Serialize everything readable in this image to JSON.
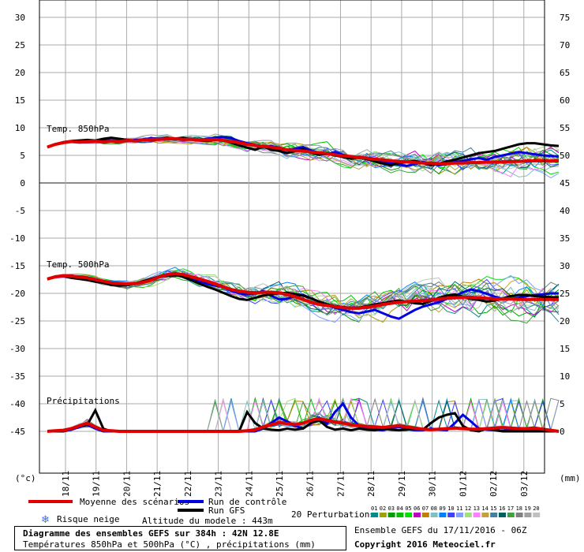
{
  "chart_data": {
    "type": "line",
    "title": "Diagramme des ensembles GEFS sur 384h : 42N 12.8E",
    "subtitle": "Températures 850hPa et 500hPa (°C) , précipitations (mm)",
    "x_dates": [
      "18/11",
      "19/11",
      "20/11",
      "21/11",
      "22/11",
      "23/11",
      "24/11",
      "25/11",
      "26/11",
      "27/11",
      "28/11",
      "29/11",
      "30/11",
      "01/12",
      "02/12",
      "03/12"
    ],
    "ylabel_left": "(°c)",
    "ylabel_right": "(mm)",
    "left_ticks": [
      30,
      25,
      20,
      15,
      10,
      5,
      0,
      -5,
      -10,
      -15,
      -20,
      -25,
      -30,
      -35,
      -40,
      -45
    ],
    "right_ticks": [
      75,
      70,
      65,
      60,
      55,
      50,
      45,
      40,
      35,
      30,
      25,
      20,
      15,
      10,
      5,
      0
    ],
    "ylim_left": [
      -50,
      33
    ],
    "panel_labels": {
      "t850": "Temp. 850hPa",
      "t500": "Temp. 500hPa",
      "precip": "Précipitations"
    },
    "x_hours": [
      0,
      6,
      12,
      18,
      24,
      30,
      36,
      42,
      48,
      54,
      60,
      66,
      72,
      78,
      84,
      90,
      96,
      102,
      108,
      114,
      120,
      126,
      132,
      138,
      144,
      150,
      156,
      162,
      168,
      174,
      180,
      186,
      192,
      198,
      204,
      210,
      216,
      222,
      228,
      234,
      240,
      246,
      252,
      258,
      264,
      270,
      276,
      282,
      288,
      294,
      300,
      306,
      312,
      318,
      324,
      330,
      336,
      342,
      348,
      354,
      360,
      366,
      372,
      378,
      384
    ],
    "series": [
      {
        "name": "Moyenne des scénarios",
        "color": "#e00000",
        "t850": [
          6.5,
          7.0,
          7.3,
          7.5,
          7.4,
          7.5,
          7.6,
          7.4,
          7.6,
          7.5,
          7.7,
          7.6,
          7.8,
          7.9,
          7.9,
          8.0,
          8.0,
          7.9,
          7.9,
          7.8,
          7.8,
          7.9,
          7.7,
          7.5,
          7.3,
          7.0,
          6.8,
          6.6,
          6.5,
          6.3,
          6.0,
          5.9,
          5.8,
          5.6,
          5.5,
          5.3,
          5.1,
          4.9,
          4.8,
          4.6,
          4.5,
          4.3,
          4.2,
          4.0,
          3.9,
          3.8,
          3.7,
          3.6,
          3.6,
          3.5,
          3.5,
          3.6,
          3.6,
          3.7,
          3.7,
          3.8,
          3.8,
          3.8,
          3.9,
          3.9,
          4.0,
          4.0,
          4.0,
          4.0,
          4.0
        ],
        "t500": [
          -17.4,
          -17.0,
          -16.8,
          -16.9,
          -17.0,
          -17.2,
          -17.5,
          -17.8,
          -18.1,
          -18.2,
          -18.3,
          -18.2,
          -18.0,
          -17.6,
          -17.0,
          -16.6,
          -16.4,
          -16.6,
          -17.0,
          -17.4,
          -17.8,
          -18.3,
          -18.8,
          -19.3,
          -19.6,
          -19.8,
          -19.9,
          -19.8,
          -19.8,
          -19.9,
          -20.2,
          -20.6,
          -21.1,
          -21.6,
          -22.0,
          -22.2,
          -22.4,
          -22.6,
          -22.7,
          -22.7,
          -22.5,
          -22.3,
          -22.0,
          -21.8,
          -21.6,
          -21.5,
          -21.4,
          -21.3,
          -21.2,
          -21.0,
          -20.9,
          -20.8,
          -20.7,
          -20.7,
          -20.8,
          -20.9,
          -21.0,
          -21.0,
          -21.0,
          -21.1,
          -21.1,
          -21.1,
          -21.1,
          -21.1,
          -21.1
        ],
        "precip": [
          0.0,
          0.1,
          0.2,
          0.5,
          1.0,
          1.5,
          0.8,
          0.2,
          0.1,
          0.0,
          0.0,
          0.0,
          0.0,
          0.0,
          0.0,
          0.0,
          0.0,
          0.0,
          0.0,
          0.0,
          0.0,
          0.0,
          0.0,
          0.0,
          0.0,
          0.1,
          0.3,
          0.8,
          1.2,
          1.6,
          1.4,
          1.2,
          1.5,
          2.0,
          2.3,
          2.0,
          1.7,
          1.5,
          1.2,
          1.0,
          0.9,
          0.8,
          0.7,
          0.9,
          1.0,
          0.8,
          0.6,
          0.4,
          0.3,
          0.4,
          0.5,
          0.6,
          0.5,
          0.4,
          0.4,
          0.5,
          0.6,
          0.7,
          0.6,
          0.5,
          0.5,
          0.6,
          0.4,
          0.2,
          0.0
        ]
      },
      {
        "name": "Run de contrôle",
        "color": "#0000e0",
        "t850": [
          6.5,
          7.0,
          7.3,
          7.5,
          7.6,
          7.7,
          7.6,
          7.8,
          7.7,
          7.6,
          7.6,
          7.8,
          7.9,
          8.1,
          8.0,
          8.2,
          8.0,
          7.8,
          7.9,
          7.7,
          8.0,
          8.2,
          8.3,
          8.1,
          7.6,
          7.2,
          6.9,
          6.5,
          6.7,
          6.4,
          6.0,
          6.2,
          6.5,
          5.9,
          5.4,
          5.2,
          5.6,
          5.1,
          4.8,
          4.5,
          4.6,
          4.2,
          3.9,
          3.6,
          3.3,
          3.1,
          3.4,
          3.8,
          3.5,
          3.2,
          3.4,
          3.8,
          4.0,
          4.3,
          4.5,
          4.2,
          4.7,
          5.0,
          5.3,
          5.6,
          5.4,
          5.2,
          5.0,
          4.9,
          4.8
        ],
        "t500": [
          -17.4,
          -17.0,
          -16.9,
          -17.1,
          -17.2,
          -17.5,
          -17.8,
          -18.0,
          -18.3,
          -18.4,
          -18.4,
          -18.2,
          -17.9,
          -17.4,
          -16.9,
          -16.6,
          -16.5,
          -16.8,
          -17.3,
          -17.8,
          -18.3,
          -18.6,
          -18.9,
          -19.5,
          -20.0,
          -20.2,
          -20.0,
          -19.6,
          -20.4,
          -21.1,
          -21.0,
          -20.5,
          -20.3,
          -20.9,
          -21.5,
          -22.0,
          -22.6,
          -23.0,
          -23.4,
          -23.6,
          -23.3,
          -23.0,
          -23.6,
          -24.2,
          -24.6,
          -23.8,
          -23.0,
          -22.4,
          -22.0,
          -21.6,
          -21.0,
          -20.5,
          -19.8,
          -19.3,
          -19.6,
          -20.1,
          -20.6,
          -21.0,
          -21.1,
          -20.8,
          -20.5,
          -20.3,
          -20.2,
          -20.0,
          -20.0
        ],
        "precip": [
          0,
          0,
          0,
          0.3,
          0.8,
          1.2,
          0.5,
          0,
          0,
          0,
          0,
          0,
          0,
          0,
          0,
          0,
          0,
          0,
          0,
          0,
          0,
          0,
          0,
          0,
          0,
          0,
          0,
          0.5,
          1.5,
          2.5,
          1.8,
          1.0,
          0.5,
          1.5,
          2.5,
          1.4,
          3.5,
          5.0,
          2.5,
          1.0,
          0.5,
          0.3,
          0.2,
          0.6,
          0.8,
          0.4,
          0.2,
          0.2,
          0.5,
          0.3,
          0.2,
          1.5,
          3.0,
          1.8,
          0.5,
          0.3,
          0.2,
          0.1,
          0.3,
          0.2,
          0.1,
          0.1,
          0.1,
          0,
          0
        ]
      },
      {
        "name": "Run GFS",
        "color": "#000000",
        "t850": [
          6.5,
          7.0,
          7.4,
          7.6,
          7.7,
          7.8,
          7.7,
          8.0,
          8.2,
          8.0,
          7.8,
          7.6,
          7.9,
          7.7,
          7.9,
          8.1,
          8.0,
          8.2,
          7.9,
          7.7,
          7.6,
          7.8,
          7.7,
          7.3,
          6.8,
          6.4,
          6.0,
          6.6,
          6.0,
          5.8,
          5.4,
          5.8,
          6.1,
          5.5,
          5.1,
          5.3,
          5.0,
          4.7,
          4.4,
          4.6,
          4.3,
          3.9,
          3.5,
          3.2,
          3.6,
          3.8,
          4.0,
          3.6,
          3.2,
          3.5,
          3.9,
          4.2,
          4.6,
          5.0,
          5.4,
          5.6,
          5.8,
          6.2,
          6.6,
          7.0,
          7.2,
          7.2,
          7.0,
          6.8,
          6.7
        ],
        "t500": [
          -17.4,
          -17.0,
          -16.9,
          -17.2,
          -17.4,
          -17.6,
          -17.9,
          -18.1,
          -18.5,
          -18.6,
          -18.5,
          -18.2,
          -17.8,
          -17.4,
          -17.0,
          -16.8,
          -16.7,
          -17.0,
          -17.6,
          -18.2,
          -18.8,
          -19.3,
          -19.9,
          -20.5,
          -21.0,
          -21.2,
          -20.8,
          -20.4,
          -20.2,
          -20.0,
          -19.9,
          -20.1,
          -20.4,
          -20.9,
          -21.5,
          -22.0,
          -22.3,
          -22.5,
          -22.6,
          -22.6,
          -22.3,
          -22.0,
          -21.8,
          -21.5,
          -21.3,
          -21.5,
          -21.8,
          -21.9,
          -21.4,
          -20.8,
          -20.4,
          -20.2,
          -20.6,
          -21.0,
          -21.2,
          -21.5,
          -21.3,
          -20.9,
          -20.5,
          -20.3,
          -20.3,
          -20.5,
          -20.6,
          -20.7,
          -20.7
        ],
        "precip": [
          0,
          0,
          0,
          0.5,
          1.0,
          1.2,
          3.8,
          0.5,
          0,
          0,
          0,
          0,
          0,
          0,
          0,
          0,
          0,
          0,
          0,
          0,
          0,
          0,
          0,
          0,
          0,
          3.5,
          1.5,
          0.5,
          0.3,
          0.2,
          0.5,
          0.3,
          0.5,
          1.5,
          2.0,
          0.8,
          0.3,
          0.5,
          0.2,
          0.5,
          0.3,
          0.2,
          0.5,
          0.3,
          0.2,
          0.3,
          0.5,
          0.3,
          1.5,
          2.5,
          3.0,
          3.3,
          1.0,
          0.2,
          0,
          0.5,
          0.2,
          0,
          0,
          0,
          0,
          0,
          0,
          0,
          0
        ]
      }
    ],
    "legend": {
      "mean": "Moyenne des scénarios",
      "control": "Run de contrôle",
      "gfs": "Run GFS",
      "snow": "Risque neige",
      "altitude": "Altitude du modele : 443m",
      "perturbations": "20 Perturbations",
      "perturbation_numbers": [
        "01",
        "02",
        "03",
        "04",
        "05",
        "06",
        "07",
        "08",
        "09",
        "10",
        "11",
        "12",
        "13",
        "14",
        "15",
        "16",
        "17",
        "18",
        "19",
        "20"
      ],
      "perturbation_colors": [
        "#008c8c",
        "#a0a000",
        "#00a000",
        "#00c000",
        "#00e000",
        "#c000c0",
        "#c08000",
        "#80c0c0",
        "#0080ff",
        "#4040ff",
        "#80a0ff",
        "#a0e080",
        "#ff80ff",
        "#c0a040",
        "#4080a0",
        "#006060",
        "#40a040",
        "#808080",
        "#a0a0a0",
        "#c0c0c0"
      ]
    },
    "footer": {
      "run": "Ensemble GEFS du 17/11/2016 - 06Z",
      "copyright": "Copyright 2016 Meteociel.fr"
    }
  },
  "colors": {
    "mean": "#e00000",
    "control": "#0000e0",
    "gfs": "#000000",
    "grid": "#aaaaaa",
    "snow_icon": "#3070ff"
  }
}
